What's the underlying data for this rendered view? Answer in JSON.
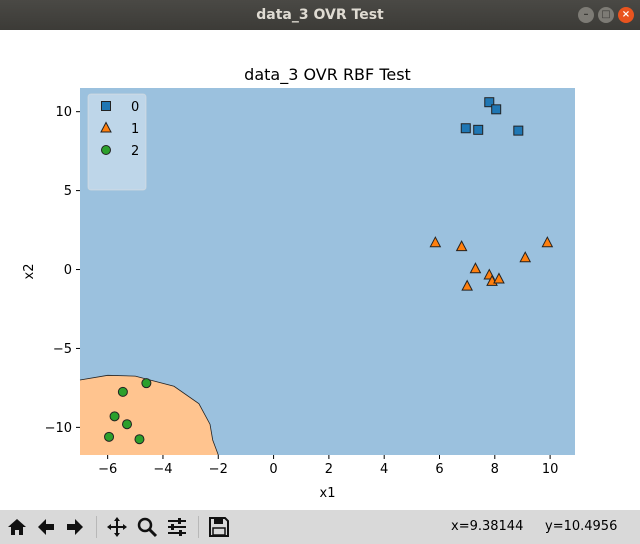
{
  "window": {
    "title": "data_3 OVR Test"
  },
  "toolbar": {
    "buttons": [
      {
        "name": "home-button",
        "icon": "home-icon"
      },
      {
        "name": "back-button",
        "icon": "arrow-left-icon"
      },
      {
        "name": "forward-button",
        "icon": "arrow-right-icon"
      },
      {
        "name": "pan-button",
        "icon": "move-icon"
      },
      {
        "name": "zoom-button",
        "icon": "magnifier-icon"
      },
      {
        "name": "configure-subplots-button",
        "icon": "sliders-icon"
      },
      {
        "name": "save-button",
        "icon": "floppy-disk-icon"
      }
    ],
    "x_readout": "x=9.38144",
    "y_readout": "y=10.4956"
  },
  "chart_data": {
    "type": "scatter",
    "title": "data_3 OVR RBF Test",
    "xlabel": "x1",
    "ylabel": "x2",
    "xlim": [
      -7.0,
      10.9
    ],
    "ylim": [
      -11.75,
      11.5
    ],
    "xticks": [
      -6,
      -4,
      -2,
      0,
      2,
      4,
      6,
      8,
      10
    ],
    "yticks": [
      10,
      5,
      0,
      -5,
      -10
    ],
    "grid": false,
    "legend_position": "top-left",
    "colors": {
      "background_region": "#9bc1de",
      "class2_region": "#ffc48f",
      "class0": "#1f77b4",
      "class1": "#ff7f0e",
      "class2": "#2ca02c"
    },
    "series": [
      {
        "name": "0",
        "marker": "square",
        "color": "#1f77b4",
        "points": [
          [
            7.8,
            10.6
          ],
          [
            8.05,
            10.15
          ],
          [
            6.95,
            8.95
          ],
          [
            7.4,
            8.85
          ],
          [
            8.85,
            8.8
          ]
        ]
      },
      {
        "name": "1",
        "marker": "triangle",
        "color": "#ff7f0e",
        "points": [
          [
            5.85,
            1.7
          ],
          [
            6.8,
            1.45
          ],
          [
            9.9,
            1.7
          ],
          [
            7.3,
            0.05
          ],
          [
            9.1,
            0.75
          ],
          [
            7.8,
            -0.35
          ],
          [
            7.9,
            -0.75
          ],
          [
            8.15,
            -0.6
          ],
          [
            7.0,
            -1.05
          ]
        ]
      },
      {
        "name": "2",
        "marker": "circle",
        "color": "#2ca02c",
        "points": [
          [
            -4.6,
            -7.2
          ],
          [
            -5.45,
            -7.75
          ],
          [
            -5.75,
            -9.3
          ],
          [
            -5.3,
            -9.8
          ],
          [
            -5.95,
            -10.6
          ],
          [
            -4.85,
            -10.75
          ]
        ]
      }
    ],
    "region_class2_boundary": [
      [
        -7.0,
        -7.0
      ],
      [
        -6.0,
        -6.7
      ],
      [
        -5.0,
        -6.75
      ],
      [
        -3.6,
        -7.4
      ],
      [
        -2.7,
        -8.5
      ],
      [
        -2.3,
        -9.8
      ],
      [
        -2.2,
        -10.8
      ],
      [
        -2.0,
        -11.75
      ],
      [
        -7.0,
        -11.75
      ]
    ]
  }
}
